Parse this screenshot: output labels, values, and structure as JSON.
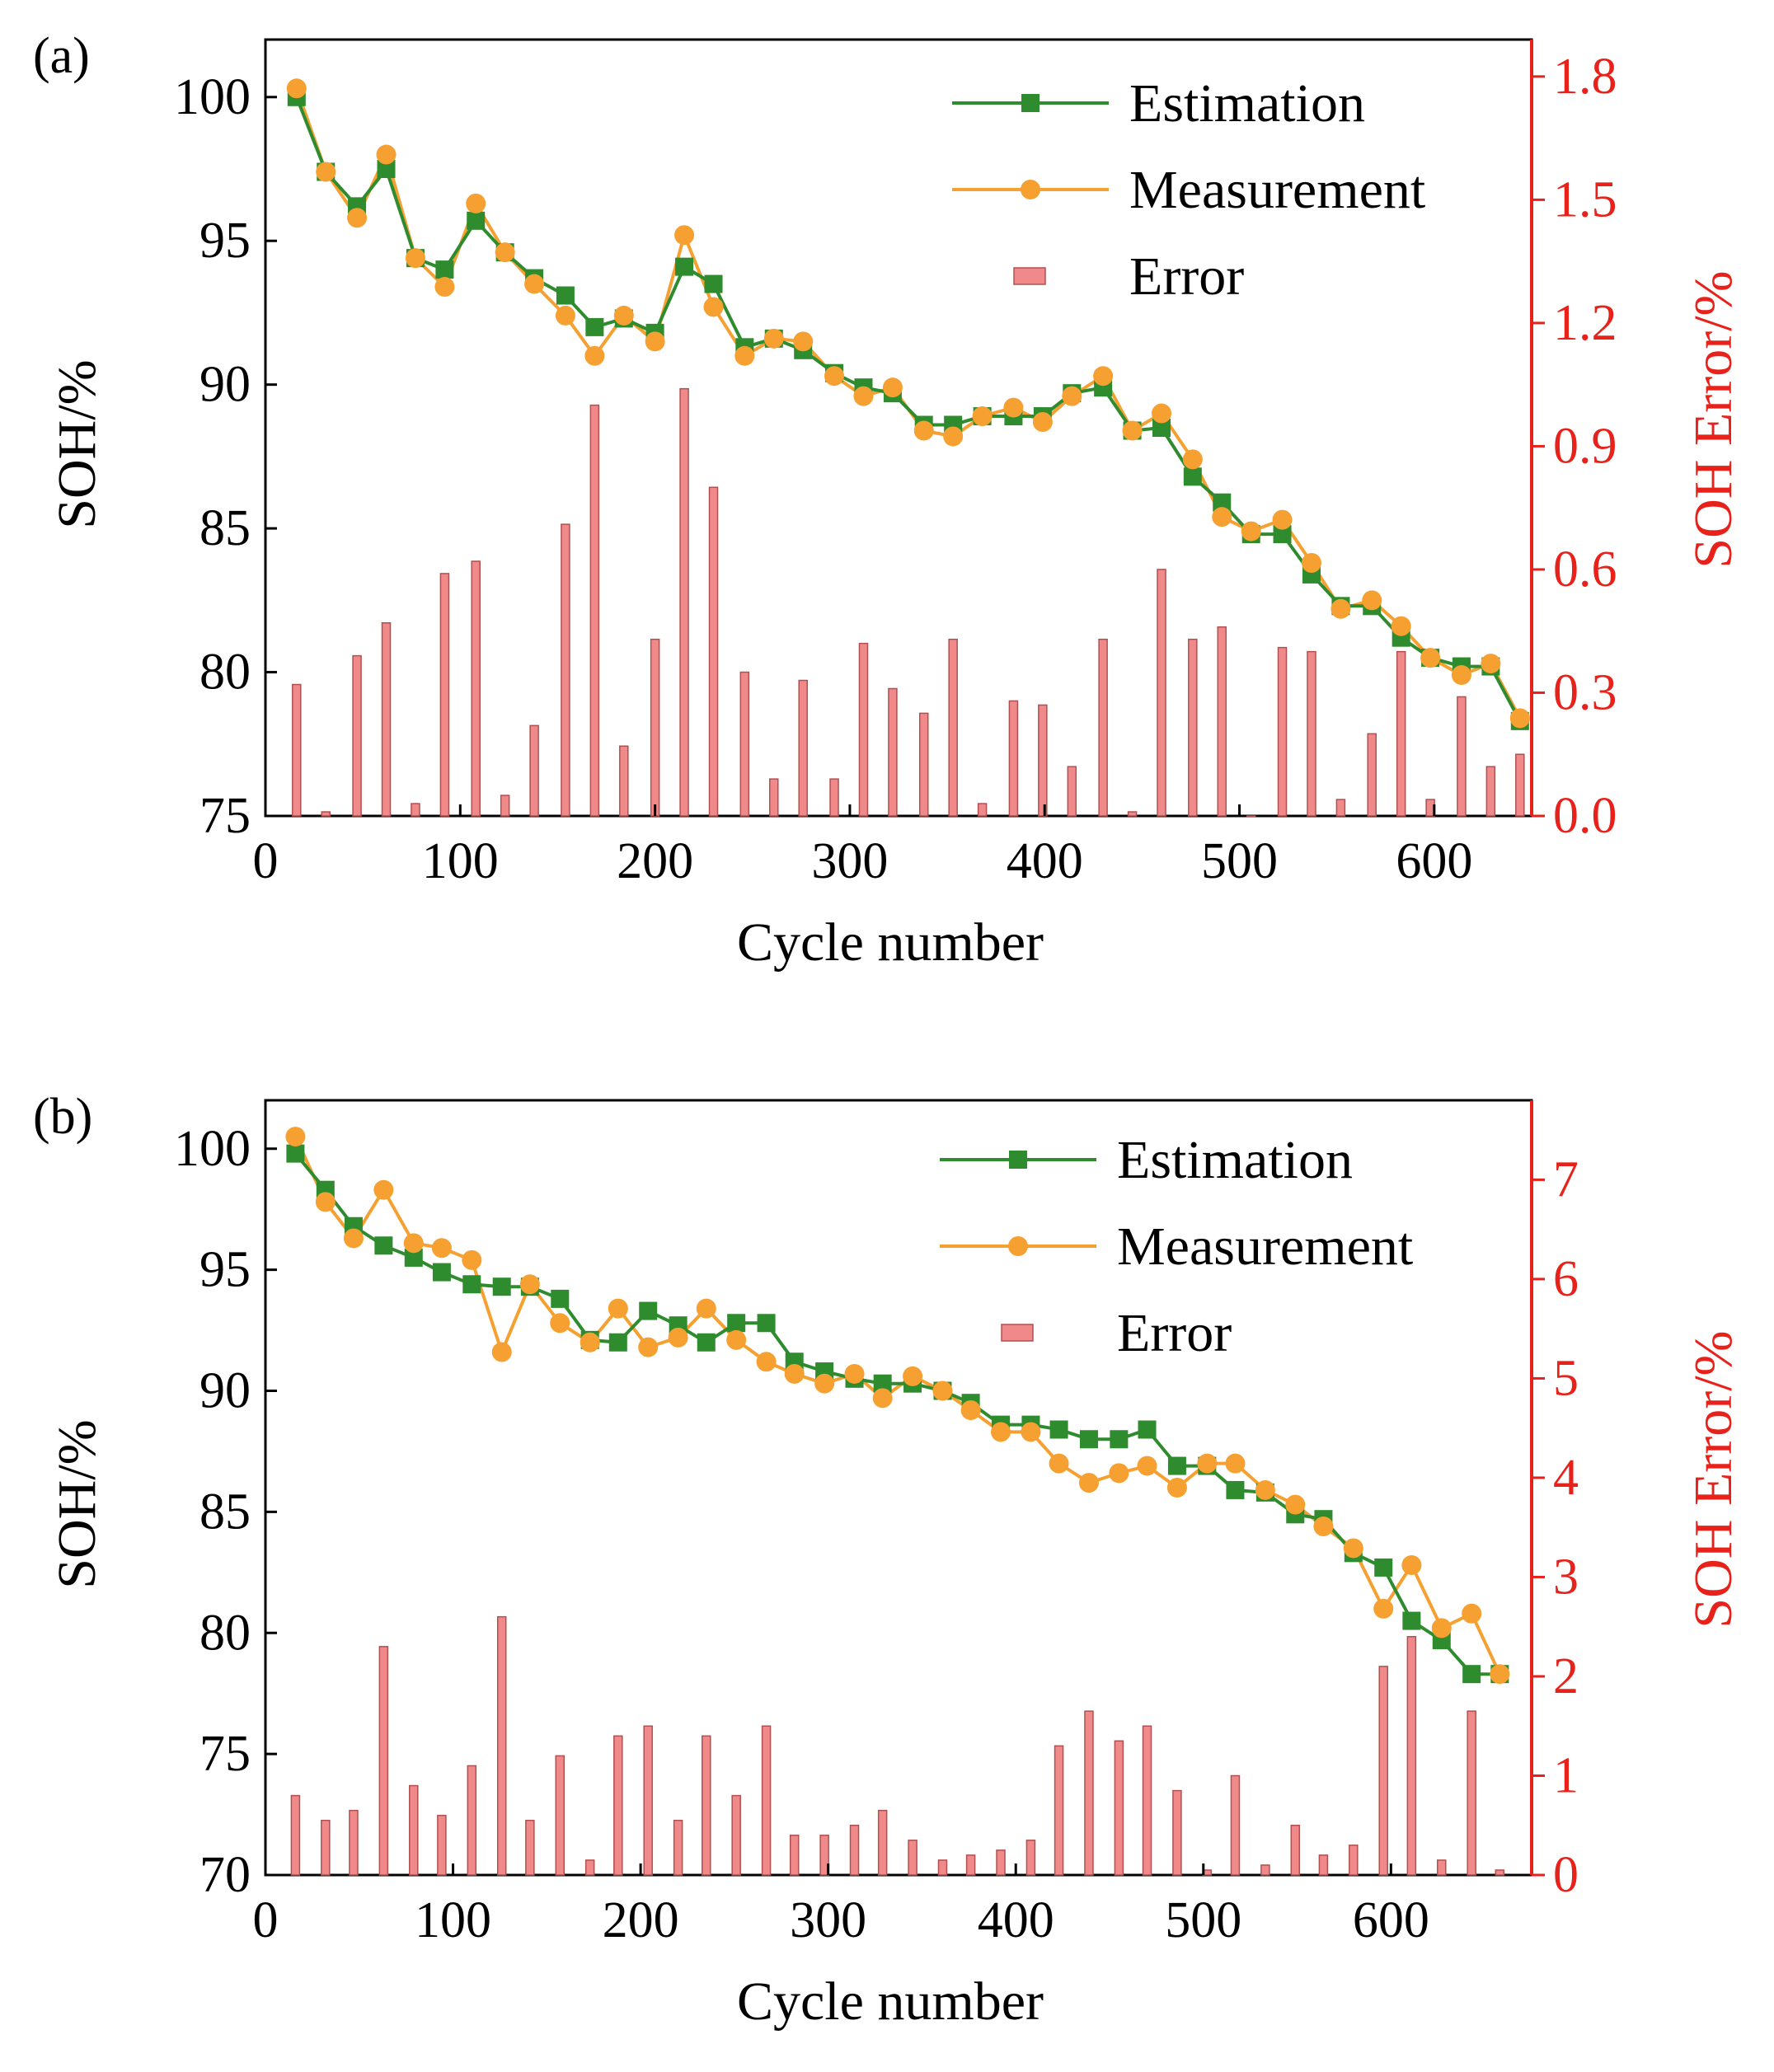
{
  "colors": {
    "estimation": "#2e8b2e",
    "measurement": "#f5a030",
    "error_fill": "#f08a8a",
    "error_stroke": "#b05050",
    "right_axis": "#e8221a",
    "axis": "#000000"
  },
  "chart_data": [
    {
      "type": "line",
      "panel_label": "(a)",
      "xlabel": "Cycle number",
      "ylabel": "SOH/%",
      "y2label": "SOH Error/%",
      "xlim": [
        0,
        650
      ],
      "ylim": [
        75,
        102
      ],
      "y2lim": [
        0,
        1.89
      ],
      "xticks": [
        "0",
        "100",
        "200",
        "300",
        "400",
        "500",
        "600"
      ],
      "yticks": [
        "75",
        "80",
        "85",
        "90",
        "95",
        "100"
      ],
      "y2ticks": [
        "0.0",
        "0.3",
        "0.6",
        "0.9",
        "1.2",
        "1.5",
        "1.8"
      ],
      "legend": [
        "Estimation",
        "Measurement",
        "Error"
      ],
      "legend_position": "top-right",
      "x": [
        16,
        31,
        47,
        62,
        77,
        92,
        108,
        123,
        138,
        154,
        169,
        184,
        200,
        215,
        230,
        246,
        261,
        276,
        292,
        307,
        322,
        338,
        353,
        368,
        384,
        399,
        414,
        430,
        445,
        460,
        476,
        491,
        506,
        522,
        537,
        552,
        568,
        583,
        598,
        614,
        629,
        644
      ],
      "series": [
        {
          "name": "Estimation",
          "axis": "left",
          "values": [
            100.0,
            97.4,
            96.2,
            97.5,
            94.4,
            94.0,
            95.7,
            94.6,
            93.7,
            93.1,
            92.0,
            92.3,
            91.8,
            94.1,
            93.5,
            91.3,
            91.6,
            91.2,
            90.4,
            89.9,
            89.7,
            88.6,
            88.6,
            88.9,
            88.9,
            88.9,
            89.7,
            89.9,
            88.4,
            88.5,
            86.8,
            85.9,
            84.8,
            84.8,
            83.4,
            82.3,
            82.3,
            81.2,
            80.5,
            80.2,
            80.2,
            78.3
          ]
        },
        {
          "name": "Measurement",
          "axis": "left",
          "values": [
            100.3,
            97.4,
            95.8,
            98.0,
            94.4,
            93.4,
            96.3,
            94.6,
            93.5,
            92.4,
            91.0,
            92.4,
            91.5,
            95.2,
            92.7,
            91.0,
            91.6,
            91.5,
            90.3,
            89.6,
            89.9,
            88.4,
            88.2,
            88.9,
            89.2,
            88.7,
            89.6,
            90.3,
            88.4,
            89.0,
            87.4,
            85.4,
            84.9,
            85.3,
            83.8,
            82.2,
            82.5,
            81.6,
            80.5,
            79.9,
            80.3,
            78.4
          ]
        },
        {
          "name": "Error",
          "type": "bar",
          "axis": "right",
          "values": [
            0.32,
            0.01,
            0.39,
            0.47,
            0.03,
            0.59,
            0.62,
            0.05,
            0.22,
            0.71,
            1.0,
            0.17,
            0.43,
            1.04,
            0.8,
            0.35,
            0.09,
            0.33,
            0.09,
            0.42,
            0.31,
            0.25,
            0.43,
            0.03,
            0.28,
            0.27,
            0.12,
            0.43,
            0.01,
            0.6,
            0.43,
            0.46,
            0.0,
            0.41,
            0.4,
            0.04,
            0.2,
            0.4,
            0.04,
            0.29,
            0.12,
            0.15
          ]
        }
      ]
    },
    {
      "type": "line",
      "panel_label": "(b)",
      "xlabel": "Cycle number",
      "ylabel": "SOH/%",
      "y2label": "SOH Error/%",
      "xlim": [
        0,
        675
      ],
      "ylim": [
        70,
        102
      ],
      "y2lim": [
        0,
        7.8
      ],
      "xticks": [
        "0",
        "100",
        "200",
        "300",
        "400",
        "500",
        "600"
      ],
      "yticks": [
        "70",
        "75",
        "80",
        "85",
        "90",
        "95",
        "100"
      ],
      "y2ticks": [
        "0",
        "1",
        "2",
        "3",
        "4",
        "5",
        "6",
        "7"
      ],
      "legend": [
        "Estimation",
        "Measurement",
        "Error"
      ],
      "legend_position": "top-right",
      "x": [
        16,
        32,
        47,
        63,
        79,
        94,
        110,
        126,
        141,
        157,
        173,
        188,
        204,
        220,
        235,
        251,
        267,
        282,
        298,
        314,
        329,
        345,
        361,
        376,
        392,
        408,
        423,
        439,
        455,
        470,
        486,
        502,
        517,
        533,
        549,
        564,
        580,
        596,
        611,
        627,
        643,
        658
      ],
      "series": [
        {
          "name": "Estimation",
          "axis": "left",
          "values": [
            99.8,
            98.3,
            96.8,
            96.0,
            95.5,
            94.9,
            94.4,
            94.3,
            94.3,
            93.8,
            92.1,
            92.0,
            93.3,
            92.7,
            92.0,
            92.8,
            92.8,
            91.2,
            90.8,
            90.5,
            90.3,
            90.3,
            90.0,
            89.5,
            88.6,
            88.6,
            88.4,
            88.0,
            88.0,
            88.4,
            86.9,
            86.9,
            85.9,
            85.8,
            84.9,
            84.7,
            83.3,
            82.7,
            80.5,
            79.7,
            78.3,
            78.3
          ]
        },
        {
          "name": "Measurement",
          "axis": "left",
          "values": [
            100.5,
            97.8,
            96.3,
            98.3,
            96.1,
            95.9,
            95.4,
            91.6,
            94.4,
            92.8,
            92.0,
            93.4,
            91.8,
            92.2,
            93.4,
            92.1,
            91.2,
            90.7,
            90.3,
            90.7,
            89.7,
            90.6,
            90.0,
            89.2,
            88.3,
            88.3,
            87.0,
            86.2,
            86.6,
            86.9,
            86.0,
            87.0,
            87.0,
            85.9,
            85.3,
            84.4,
            83.5,
            81.0,
            82.8,
            80.2,
            80.8,
            78.3
          ]
        },
        {
          "name": "Error",
          "type": "bar",
          "axis": "right",
          "values": [
            0.8,
            0.55,
            0.65,
            2.3,
            0.9,
            0.6,
            1.1,
            2.6,
            0.55,
            1.2,
            0.15,
            1.4,
            1.5,
            0.55,
            1.4,
            0.8,
            1.5,
            0.4,
            0.4,
            0.5,
            0.65,
            0.35,
            0.15,
            0.2,
            0.25,
            0.35,
            1.3,
            1.65,
            1.35,
            1.5,
            0.85,
            0.05,
            1.0,
            0.1,
            0.5,
            0.2,
            0.3,
            2.1,
            2.4,
            0.15,
            1.65,
            0.05
          ]
        }
      ]
    }
  ]
}
